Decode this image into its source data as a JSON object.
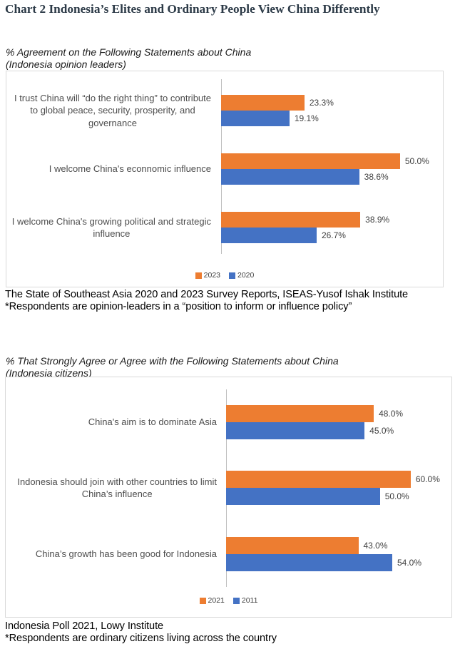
{
  "page_title": "Chart 2 Indonesia’s Elites and Ordinary People View China Differently",
  "colors": {
    "orange": "#ED7D31",
    "blue": "#4472C4"
  },
  "chart_data": [
    {
      "type": "bar",
      "orientation": "horizontal",
      "title": "% Agreement on the Following Statements about China",
      "subtitle": "(Indonesia opinion leaders)",
      "categories": [
        "I trust China will “do the right thing” to contribute to global peace, security, prosperity, and governance",
        "I welcome China's econnomic influence",
        "I welcome China's growing political and strategic influence"
      ],
      "category_lines": [
        [
          "I trust China will “do the right thing” to contribute",
          "to global peace, security, prosperity, and",
          "governance"
        ],
        [
          "I welcome China's econnomic influence"
        ],
        [
          "I welcome China's growing political and strategic",
          "influence"
        ]
      ],
      "series": [
        {
          "name": "2023",
          "color": "#ED7D31",
          "values": [
            23.3,
            50.0,
            38.9
          ],
          "labels": [
            "23.3%",
            "50.0%",
            "38.9%"
          ]
        },
        {
          "name": "2020",
          "color": "#4472C4",
          "values": [
            19.1,
            38.6,
            26.7
          ],
          "labels": [
            "19.1%",
            "38.6%",
            "26.7%"
          ]
        }
      ],
      "xlim": [
        0,
        60
      ],
      "legend_position": "bottom",
      "grid": false,
      "source_lines": [
        "The State of Southeast Asia 2020 and 2023 Survey Reports, ISEAS-Yusof Ishak Institute",
        "*Respondents are opinion-leaders in a “position to inform or influence policy”"
      ]
    },
    {
      "type": "bar",
      "orientation": "horizontal",
      "title": "% That Strongly Agree or Agree with the Following Statements about China",
      "subtitle": "(Indonesia citizens)",
      "categories": [
        "China's aim is to dominate Asia",
        "Indonesia should join with other countries to limit China’s influence",
        "China’s growth has been good for Indonesia"
      ],
      "category_lines": [
        [
          "China's aim is to dominate Asia"
        ],
        [
          "Indonesia should join with other countries to limit",
          "China’s influence"
        ],
        [
          "China’s growth has been good for Indonesia"
        ]
      ],
      "series": [
        {
          "name": "2021",
          "color": "#ED7D31",
          "values": [
            48.0,
            60.0,
            43.0
          ],
          "labels": [
            "48.0%",
            "60.0%",
            "43.0%"
          ]
        },
        {
          "name": "2011",
          "color": "#4472C4",
          "values": [
            45.0,
            50.0,
            54.0
          ],
          "labels": [
            "45.0%",
            "50.0%",
            "54.0%"
          ]
        }
      ],
      "xlim": [
        0,
        70
      ],
      "legend_position": "bottom",
      "grid": false,
      "source_lines": [
        "Indonesia Poll 2021, Lowy Institute",
        "*Respondents are ordinary citizens living across the country"
      ]
    }
  ]
}
